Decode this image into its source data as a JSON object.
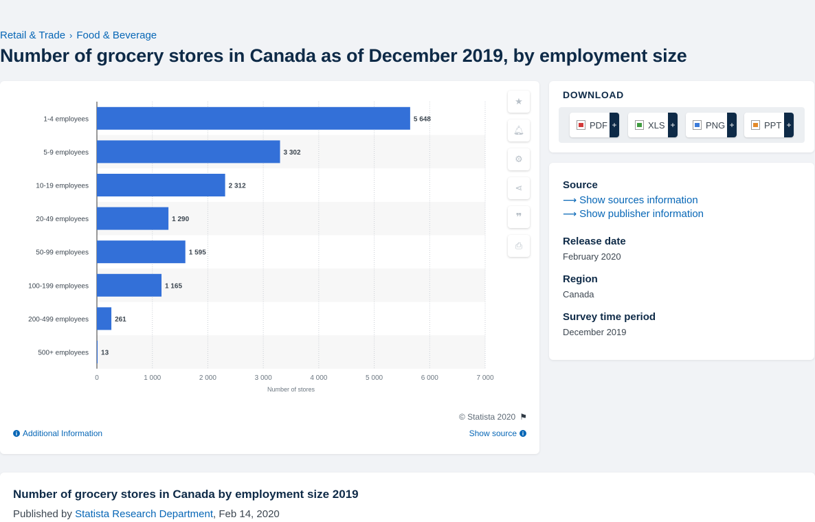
{
  "breadcrumb": {
    "item1": "Retail & Trade",
    "separator": "›",
    "item2": "Food & Beverage"
  },
  "page_title": "Number of grocery stores in Canada as of December 2019, by employment size",
  "chart_data": {
    "type": "bar",
    "orientation": "horizontal",
    "categories": [
      "1-4 employees",
      "5-9 employees",
      "10-19 employees",
      "20-49 employees",
      "50-99 employees",
      "100-199 employees",
      "200-499 employees",
      "500+ employees"
    ],
    "values": [
      5648,
      3302,
      2312,
      1290,
      1595,
      1165,
      261,
      13
    ],
    "value_labels": [
      "5 648",
      "3 302",
      "2 312",
      "1 290",
      "1 595",
      "1 165",
      "261",
      "13"
    ],
    "xlabel": "Number of stores",
    "ylabel": "",
    "xlim": [
      0,
      7000
    ],
    "x_ticks": [
      0,
      1000,
      2000,
      3000,
      4000,
      5000,
      6000,
      7000
    ],
    "x_tick_labels": [
      "0",
      "1 000",
      "2 000",
      "3 000",
      "4 000",
      "5 000",
      "6 000",
      "7 000"
    ],
    "bar_color": "#3370d8",
    "grid": true,
    "legend": "none"
  },
  "chart_tools": {
    "favorite": "star-icon",
    "alert": "bell-icon",
    "settings": "gear-icon",
    "share": "share-icon",
    "cite": "quote-icon",
    "print": "print-icon"
  },
  "copyright": "© Statista 2020",
  "additional_info": "Additional Information",
  "show_source": "Show source",
  "download": {
    "title": "DOWNLOAD",
    "pdf": "PDF",
    "xls": "XLS",
    "png": "PNG",
    "ppt": "PPT",
    "plus": "+"
  },
  "meta": {
    "source_label": "Source",
    "show_sources": "Show sources information",
    "show_publisher": "Show publisher information",
    "release_label": "Release date",
    "release_value": "February 2020",
    "region_label": "Region",
    "region_value": "Canada",
    "survey_label": "Survey time period",
    "survey_value": "December 2019"
  },
  "bottom": {
    "title": "Number of grocery stores in Canada by employment size 2019",
    "published_prefix": "Published by",
    "publisher": "Statista Research Department",
    "date": ", Feb 14, 2020"
  },
  "colors": {
    "accent": "#0666b6",
    "navy": "#0e2a47",
    "bar": "#3370d8"
  }
}
